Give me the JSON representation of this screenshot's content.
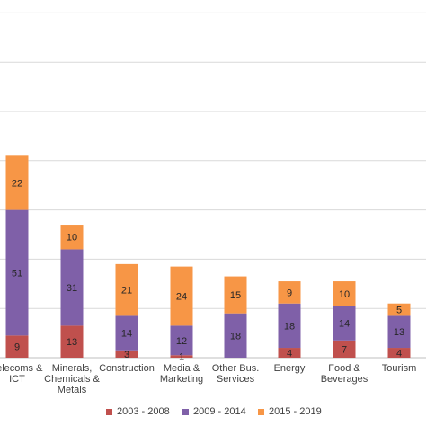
{
  "chart_data": {
    "type": "bar",
    "stacked": true,
    "grid": true,
    "legend_position": "bottom",
    "ylim": [
      0,
      140
    ],
    "ytick_step": 20,
    "categories": [
      [
        "Telecoms &",
        "ICT"
      ],
      [
        "Minerals,",
        "Chemicals &",
        "Metals"
      ],
      [
        "Construction"
      ],
      [
        "Media &",
        "Marketing"
      ],
      [
        "Other Bus.",
        "Services"
      ],
      [
        "Energy"
      ],
      [
        "Food &",
        "Beverages"
      ],
      [
        "Tourism"
      ]
    ],
    "series": [
      {
        "name": "2003 - 2008",
        "color": "#c0504d",
        "values": [
          9,
          13,
          3,
          1,
          0,
          4,
          7,
          4
        ]
      },
      {
        "name": "2009 - 2014",
        "color": "#7f60a8",
        "values": [
          51,
          31,
          14,
          12,
          18,
          18,
          14,
          13
        ]
      },
      {
        "name": "2015 - 2019",
        "color": "#f79646",
        "values": [
          22,
          10,
          21,
          24,
          15,
          9,
          10,
          5
        ]
      }
    ]
  }
}
